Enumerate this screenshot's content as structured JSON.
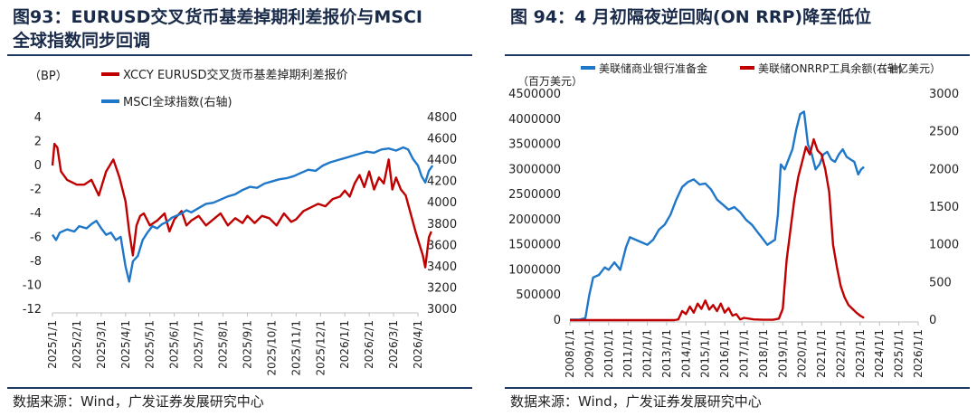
{
  "left_panel": {
    "title_line1": "图93：EURUSD交叉货币基差掉期利差报价与MSCI",
    "title_line2": "全球指数同步回调",
    "source": "数据来源：Wind，广发证券发展研究中心"
  },
  "right_panel": {
    "title": "图 94：4 月初隔夜逆回购(ON RRP)降至低位",
    "source": "数据来源：Wind，广发证券发展研究中心"
  },
  "colors": {
    "red": "#c00000",
    "blue": "#1f77c9",
    "title": "#1a2b4a"
  },
  "chart_data": [
    {
      "type": "line",
      "unit_label": "（BP）",
      "categories": [
        "2025/1/1",
        "2025/2/1",
        "2025/3/1",
        "2025/4/1",
        "2025/5/1",
        "2025/6/1",
        "2025/7/1",
        "2025/8/1",
        "2025/9/1",
        "2025/10/1",
        "2025/11/1",
        "2025/12/1",
        "2026/1/1",
        "2026/2/1",
        "2026/3/1",
        "2026/4/1"
      ],
      "y_left": {
        "min": -12,
        "max": 4,
        "ticks": [
          4,
          2,
          0,
          -2,
          -4,
          -6,
          -8,
          -10,
          -12
        ]
      },
      "y_right": {
        "min": 3000,
        "max": 4800,
        "ticks": [
          4800,
          4600,
          4400,
          4200,
          4000,
          3800,
          3600,
          3400,
          3200,
          3000
        ]
      },
      "series": [
        {
          "name": "XCCY EURUSD交叉货币基差掉期利差报价",
          "axis": "left",
          "color": "#c00000",
          "points": [
            [
              0,
              0
            ],
            [
              0.08,
              1.8
            ],
            [
              0.2,
              1.5
            ],
            [
              0.35,
              -0.5
            ],
            [
              0.6,
              -1.2
            ],
            [
              1.0,
              -1.6
            ],
            [
              1.3,
              -1.6
            ],
            [
              1.6,
              -1.2
            ],
            [
              1.9,
              -2.5
            ],
            [
              2.2,
              -0.5
            ],
            [
              2.5,
              0.5
            ],
            [
              2.75,
              -1.0
            ],
            [
              3.0,
              -3.0
            ],
            [
              3.15,
              -5.5
            ],
            [
              3.3,
              -7.5
            ],
            [
              3.45,
              -5.0
            ],
            [
              3.6,
              -4.2
            ],
            [
              3.75,
              -4.0
            ],
            [
              4.0,
              -5.0
            ],
            [
              4.3,
              -4.6
            ],
            [
              4.6,
              -4.0
            ],
            [
              4.8,
              -5.5
            ],
            [
              5.0,
              -4.5
            ],
            [
              5.3,
              -3.8
            ],
            [
              5.5,
              -5.0
            ],
            [
              5.7,
              -4.6
            ],
            [
              6.0,
              -4.2
            ],
            [
              6.3,
              -5.0
            ],
            [
              6.6,
              -4.5
            ],
            [
              6.9,
              -4.0
            ],
            [
              7.2,
              -5.0
            ],
            [
              7.5,
              -4.4
            ],
            [
              7.8,
              -4.8
            ],
            [
              8.0,
              -4.2
            ],
            [
              8.3,
              -4.8
            ],
            [
              8.6,
              -4.2
            ],
            [
              8.9,
              -4.4
            ],
            [
              9.2,
              -5.0
            ],
            [
              9.5,
              -4.0
            ],
            [
              9.8,
              -4.7
            ],
            [
              10.0,
              -4.5
            ],
            [
              10.3,
              -3.8
            ],
            [
              10.6,
              -3.5
            ],
            [
              10.9,
              -3.2
            ],
            [
              11.2,
              -3.4
            ],
            [
              11.5,
              -2.8
            ],
            [
              11.8,
              -2.6
            ],
            [
              12.0,
              -2.1
            ],
            [
              12.2,
              -2.6
            ],
            [
              12.4,
              -1.5
            ],
            [
              12.6,
              -0.8
            ],
            [
              12.8,
              -1.8
            ],
            [
              13.0,
              -0.5
            ],
            [
              13.2,
              -2.0
            ],
            [
              13.4,
              -1.0
            ],
            [
              13.6,
              -1.5
            ],
            [
              13.8,
              0.5
            ],
            [
              13.95,
              -2.0
            ],
            [
              14.1,
              -1.0
            ],
            [
              14.3,
              -2.0
            ],
            [
              14.5,
              -2.5
            ],
            [
              14.7,
              -4.0
            ],
            [
              14.9,
              -5.5
            ],
            [
              15.05,
              -6.5
            ],
            [
              15.2,
              -7.5
            ],
            [
              15.3,
              -8.5
            ],
            [
              15.45,
              -6.0
            ],
            [
              15.55,
              -5.5
            ]
          ]
        },
        {
          "name": "MSCI全球指数(右轴)",
          "axis": "right",
          "color": "#1f77c9",
          "points": [
            [
              0,
              3700
            ],
            [
              0.15,
              3650
            ],
            [
              0.3,
              3720
            ],
            [
              0.6,
              3750
            ],
            [
              0.9,
              3730
            ],
            [
              1.1,
              3780
            ],
            [
              1.4,
              3760
            ],
            [
              1.6,
              3800
            ],
            [
              1.8,
              3830
            ],
            [
              2.0,
              3760
            ],
            [
              2.2,
              3700
            ],
            [
              2.4,
              3720
            ],
            [
              2.6,
              3650
            ],
            [
              2.8,
              3680
            ],
            [
              3.0,
              3400
            ],
            [
              3.15,
              3260
            ],
            [
              3.3,
              3450
            ],
            [
              3.5,
              3500
            ],
            [
              3.7,
              3650
            ],
            [
              3.9,
              3720
            ],
            [
              4.1,
              3780
            ],
            [
              4.3,
              3760
            ],
            [
              4.5,
              3800
            ],
            [
              4.7,
              3820
            ],
            [
              4.9,
              3860
            ],
            [
              5.1,
              3880
            ],
            [
              5.3,
              3900
            ],
            [
              5.5,
              3930
            ],
            [
              5.7,
              3910
            ],
            [
              6.0,
              3950
            ],
            [
              6.3,
              3990
            ],
            [
              6.6,
              4000
            ],
            [
              6.9,
              4030
            ],
            [
              7.2,
              4060
            ],
            [
              7.5,
              4080
            ],
            [
              7.8,
              4120
            ],
            [
              8.1,
              4150
            ],
            [
              8.4,
              4140
            ],
            [
              8.7,
              4180
            ],
            [
              9.0,
              4200
            ],
            [
              9.3,
              4220
            ],
            [
              9.6,
              4230
            ],
            [
              9.9,
              4250
            ],
            [
              10.2,
              4280
            ],
            [
              10.5,
              4310
            ],
            [
              10.8,
              4300
            ],
            [
              11.1,
              4350
            ],
            [
              11.4,
              4380
            ],
            [
              11.7,
              4400
            ],
            [
              12.0,
              4420
            ],
            [
              12.3,
              4440
            ],
            [
              12.6,
              4460
            ],
            [
              12.9,
              4480
            ],
            [
              13.2,
              4470
            ],
            [
              13.5,
              4500
            ],
            [
              13.8,
              4510
            ],
            [
              14.1,
              4490
            ],
            [
              14.4,
              4520
            ],
            [
              14.6,
              4500
            ],
            [
              14.8,
              4410
            ],
            [
              15.0,
              4350
            ],
            [
              15.15,
              4250
            ],
            [
              15.3,
              4190
            ],
            [
              15.45,
              4300
            ],
            [
              15.6,
              4350
            ]
          ]
        }
      ]
    },
    {
      "type": "line",
      "unit_left": "（百万美元）",
      "unit_right": "（十亿美元）",
      "categories": [
        "2008/1/1",
        "2009/1/1",
        "2010/1/1",
        "2011/1/1",
        "2012/1/1",
        "2013/1/1",
        "2014/1/1",
        "2015/1/1",
        "2016/1/1",
        "2017/1/1",
        "2018/1/1",
        "2019/1/1",
        "2020/1/1",
        "2021/1/1",
        "2022/1/1",
        "2023/1/1",
        "2024/1/1",
        "2025/1/1",
        "2026/1/1"
      ],
      "y_left": {
        "min": 0,
        "max": 4500000,
        "ticks": [
          4500000,
          4000000,
          3500000,
          3000000,
          2500000,
          2000000,
          1500000,
          1000000,
          500000,
          0
        ]
      },
      "y_right": {
        "min": 0,
        "max": 3000,
        "ticks": [
          3000,
          2500,
          2000,
          1500,
          1000,
          500,
          0
        ]
      },
      "series": [
        {
          "name": "美联储商业银行准备金",
          "axis": "left",
          "color": "#1f77c9",
          "points": [
            [
              0,
              10000
            ],
            [
              0.5,
              10000
            ],
            [
              0.8,
              40000
            ],
            [
              1.0,
              500000
            ],
            [
              1.2,
              850000
            ],
            [
              1.5,
              900000
            ],
            [
              1.8,
              1050000
            ],
            [
              2.0,
              1000000
            ],
            [
              2.3,
              1150000
            ],
            [
              2.6,
              1000000
            ],
            [
              2.9,
              1450000
            ],
            [
              3.1,
              1650000
            ],
            [
              3.4,
              1600000
            ],
            [
              3.7,
              1550000
            ],
            [
              4.0,
              1500000
            ],
            [
              4.3,
              1600000
            ],
            [
              4.6,
              1800000
            ],
            [
              4.9,
              1900000
            ],
            [
              5.2,
              2100000
            ],
            [
              5.5,
              2400000
            ],
            [
              5.8,
              2650000
            ],
            [
              6.1,
              2750000
            ],
            [
              6.4,
              2800000
            ],
            [
              6.7,
              2700000
            ],
            [
              7.0,
              2720000
            ],
            [
              7.3,
              2600000
            ],
            [
              7.6,
              2400000
            ],
            [
              7.9,
              2300000
            ],
            [
              8.2,
              2200000
            ],
            [
              8.5,
              2250000
            ],
            [
              8.8,
              2150000
            ],
            [
              9.1,
              2000000
            ],
            [
              9.4,
              1900000
            ],
            [
              9.7,
              1750000
            ],
            [
              9.9,
              1650000
            ],
            [
              10.2,
              1500000
            ],
            [
              10.4,
              1550000
            ],
            [
              10.6,
              1600000
            ],
            [
              10.75,
              2100000
            ],
            [
              10.9,
              3100000
            ],
            [
              11.1,
              3000000
            ],
            [
              11.3,
              3200000
            ],
            [
              11.5,
              3400000
            ],
            [
              11.7,
              3800000
            ],
            [
              11.9,
              4100000
            ],
            [
              12.1,
              4150000
            ],
            [
              12.3,
              3500000
            ],
            [
              12.5,
              3300000
            ],
            [
              12.7,
              3000000
            ],
            [
              12.9,
              3100000
            ],
            [
              13.1,
              3300000
            ],
            [
              13.3,
              3350000
            ],
            [
              13.5,
              3200000
            ],
            [
              13.7,
              3150000
            ],
            [
              13.9,
              3300000
            ],
            [
              14.1,
              3400000
            ],
            [
              14.3,
              3250000
            ],
            [
              14.5,
              3200000
            ],
            [
              14.7,
              3150000
            ],
            [
              14.9,
              2900000
            ],
            [
              15.05,
              3000000
            ],
            [
              15.2,
              3050000
            ]
          ]
        },
        {
          "name": "美联储ONRRP工具余额(右轴)",
          "axis": "right",
          "color": "#c00000",
          "points": [
            [
              0,
              0
            ],
            [
              5.4,
              0
            ],
            [
              5.6,
              10
            ],
            [
              5.8,
              120
            ],
            [
              6.0,
              80
            ],
            [
              6.2,
              180
            ],
            [
              6.4,
              100
            ],
            [
              6.6,
              220
            ],
            [
              6.8,
              150
            ],
            [
              7.0,
              260
            ],
            [
              7.2,
              140
            ],
            [
              7.4,
              200
            ],
            [
              7.6,
              120
            ],
            [
              7.8,
              220
            ],
            [
              8.0,
              100
            ],
            [
              8.2,
              160
            ],
            [
              8.4,
              60
            ],
            [
              8.6,
              80
            ],
            [
              8.8,
              10
            ],
            [
              9.0,
              30
            ],
            [
              9.5,
              10
            ],
            [
              10.0,
              5
            ],
            [
              10.5,
              5
            ],
            [
              10.8,
              20
            ],
            [
              11.0,
              150
            ],
            [
              11.2,
              800
            ],
            [
              11.4,
              1200
            ],
            [
              11.6,
              1600
            ],
            [
              11.8,
              1900
            ],
            [
              12.0,
              2100
            ],
            [
              12.2,
              2300
            ],
            [
              12.4,
              2200
            ],
            [
              12.6,
              2400
            ],
            [
              12.8,
              2250
            ],
            [
              13.0,
              2200
            ],
            [
              13.2,
              2000
            ],
            [
              13.4,
              1700
            ],
            [
              13.6,
              1000
            ],
            [
              13.8,
              700
            ],
            [
              14.0,
              450
            ],
            [
              14.2,
              300
            ],
            [
              14.4,
              200
            ],
            [
              14.6,
              150
            ],
            [
              14.8,
              100
            ],
            [
              15.0,
              60
            ],
            [
              15.2,
              30
            ]
          ]
        }
      ]
    }
  ]
}
